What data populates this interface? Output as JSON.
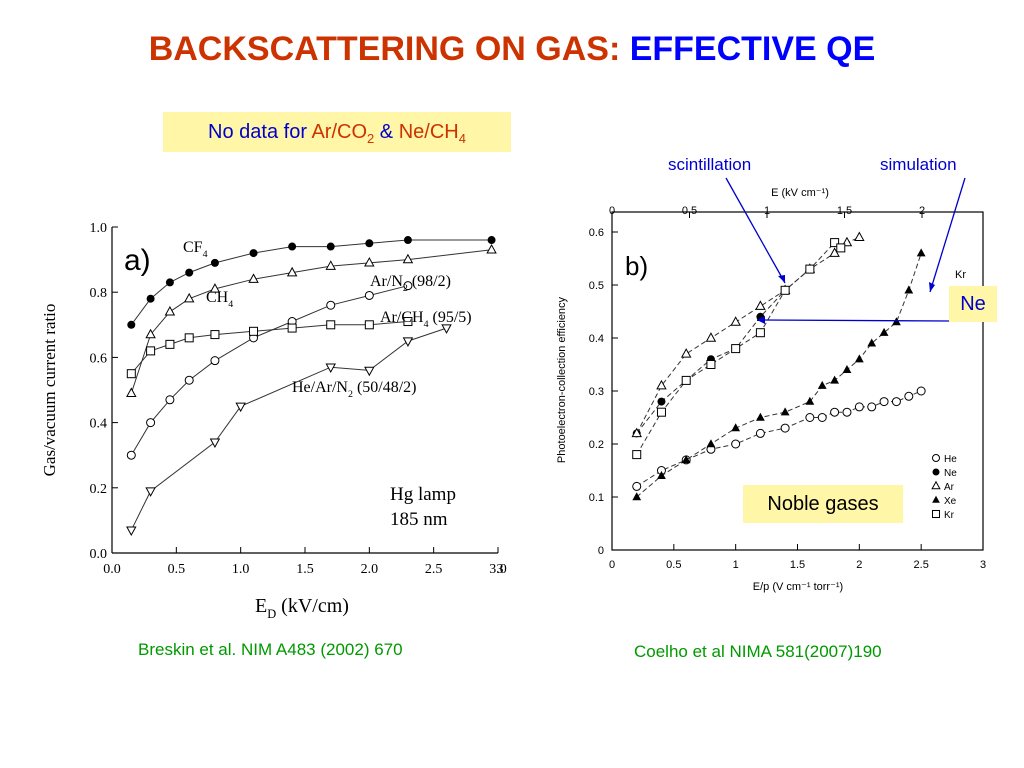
{
  "slide": {
    "title_part1": "BACKSCATTERING ON GAS: ",
    "title_part2": "EFFECTIVE QE",
    "nodata": {
      "prefix": "No data for ",
      "gas1": "Ar/CO",
      "gas1_sub": "2",
      "amp": " & ",
      "gas2": "Ne/CH",
      "gas2_sub": "4"
    },
    "citation_left": "Breskin et al. NIM A483 (2002) 670",
    "citation_right": "Coelho et al NIMA 581(2007)190",
    "label_scint": "scintillation",
    "label_sim": "simulation",
    "label_ne": "Ne",
    "label_noble": "Noble gases"
  },
  "chart_data": [
    {
      "type": "scatter",
      "panel_label": "a)",
      "xlabel": "E_D (kV/cm)",
      "xlabel_main": "E",
      "xlabel_sub": "D",
      "xlabel_unit": " (kV/cm)",
      "ylabel": "Gas/vacuum current ratio",
      "xlim": [
        0,
        3
      ],
      "ylim": [
        0,
        1
      ],
      "xticks": [
        "0.0",
        "0.5",
        "1.0",
        "1.5",
        "2.0",
        "2.5",
        "3.0",
        "3"
      ],
      "yticks": [
        "0.0",
        "0.2",
        "0.4",
        "0.6",
        "0.8",
        "1.0"
      ],
      "annotation": [
        "Hg lamp",
        "185 nm"
      ],
      "series": [
        {
          "name": "CF4",
          "label_main": "CF",
          "label_sub": "4",
          "marker": "filled-circle",
          "x": [
            0.15,
            0.3,
            0.45,
            0.6,
            0.8,
            1.1,
            1.4,
            1.7,
            2.0,
            2.3,
            2.95
          ],
          "y": [
            0.7,
            0.78,
            0.83,
            0.86,
            0.89,
            0.92,
            0.94,
            0.94,
            0.95,
            0.96,
            0.96
          ]
        },
        {
          "name": "CH4",
          "label_main": "CH",
          "label_sub": "4",
          "marker": "open-triangle",
          "x": [
            0.15,
            0.3,
            0.45,
            0.6,
            0.8,
            1.1,
            1.4,
            1.7,
            2.0,
            2.3,
            2.95
          ],
          "y": [
            0.49,
            0.67,
            0.74,
            0.78,
            0.81,
            0.84,
            0.86,
            0.88,
            0.89,
            0.9,
            0.93
          ]
        },
        {
          "name": "Ar/N2 (98/2)",
          "label_main": "Ar/N",
          "label_sub": "2",
          "label_rest": " (98/2)",
          "marker": "open-circle",
          "x": [
            0.15,
            0.3,
            0.45,
            0.6,
            0.8,
            1.1,
            1.4,
            1.7,
            2.0,
            2.3
          ],
          "y": [
            0.3,
            0.4,
            0.47,
            0.53,
            0.59,
            0.66,
            0.71,
            0.76,
            0.79,
            0.82
          ]
        },
        {
          "name": "Ar/CH4 (95/5)",
          "label_main": "Ar/CH",
          "label_sub": "4",
          "label_rest": " (95/5)",
          "marker": "open-square",
          "x": [
            0.15,
            0.3,
            0.45,
            0.6,
            0.8,
            1.1,
            1.4,
            1.7,
            2.0,
            2.3
          ],
          "y": [
            0.55,
            0.62,
            0.64,
            0.66,
            0.67,
            0.68,
            0.69,
            0.7,
            0.7,
            0.71
          ]
        },
        {
          "name": "He/Ar/N2 (50/48/2)",
          "label_main": "He/Ar/N",
          "label_sub": "2",
          "label_rest": " (50/48/2)",
          "marker": "open-inverted-triangle",
          "x": [
            0.15,
            0.3,
            0.8,
            1.0,
            1.7,
            2.0,
            2.3,
            2.6
          ],
          "y": [
            0.07,
            0.19,
            0.34,
            0.45,
            0.57,
            0.56,
            0.65,
            0.69
          ]
        }
      ]
    },
    {
      "type": "scatter",
      "panel_label": "b)",
      "xlabel": "E/p (V cm⁻¹ torr⁻¹)",
      "ylabel": "Photoelectron-collection efficiency",
      "x2label": "E (kV cm⁻¹)",
      "xlim": [
        0,
        3
      ],
      "ylim": [
        0,
        0.6
      ],
      "xticks": [
        "0",
        "0.5",
        "1",
        "1.5",
        "2",
        "2.5",
        "3"
      ],
      "yticks": [
        "0",
        "0.1",
        "0.2",
        "0.3",
        "0.4",
        "0.5",
        "0.6"
      ],
      "x2ticks": [
        "0",
        "0.5",
        "1",
        "1.5",
        "2"
      ],
      "legend_position": "bottom-right",
      "curve_label": "Kr",
      "series": [
        {
          "name": "He",
          "marker": "open-circle",
          "x": [
            0.2,
            0.4,
            0.6,
            0.8,
            1.0,
            1.2,
            1.4,
            1.6,
            1.7,
            1.8,
            1.9,
            2.0,
            2.1,
            2.2,
            2.3,
            2.4,
            2.5
          ],
          "y": [
            0.12,
            0.15,
            0.17,
            0.19,
            0.2,
            0.22,
            0.23,
            0.25,
            0.25,
            0.26,
            0.26,
            0.27,
            0.27,
            0.28,
            0.28,
            0.29,
            0.3
          ]
        },
        {
          "name": "Ne",
          "marker": "filled-circle",
          "x": [
            0.2,
            0.4,
            0.6,
            0.8,
            1.0,
            1.2,
            1.4
          ],
          "y": [
            0.22,
            0.28,
            0.32,
            0.36,
            0.38,
            0.44,
            0.49
          ]
        },
        {
          "name": "Ar",
          "marker": "open-triangle",
          "x": [
            0.2,
            0.4,
            0.6,
            0.8,
            1.0,
            1.2,
            1.4,
            1.6,
            1.8,
            1.9,
            2.0
          ],
          "y": [
            0.22,
            0.31,
            0.37,
            0.4,
            0.43,
            0.46,
            0.49,
            0.53,
            0.56,
            0.58,
            0.59
          ]
        },
        {
          "name": "Xe",
          "marker": "filled-triangle",
          "x": [
            0.2,
            0.4,
            0.6,
            0.8,
            1.0,
            1.2,
            1.4,
            1.6,
            1.7,
            1.8,
            1.9,
            2.0,
            2.1,
            2.2,
            2.3,
            2.4,
            2.5
          ],
          "y": [
            0.1,
            0.14,
            0.17,
            0.2,
            0.23,
            0.25,
            0.26,
            0.28,
            0.31,
            0.32,
            0.34,
            0.36,
            0.39,
            0.41,
            0.43,
            0.49,
            0.56
          ]
        },
        {
          "name": "Kr",
          "marker": "open-square",
          "x": [
            0.2,
            0.4,
            0.6,
            0.8,
            1.0,
            1.2,
            1.4,
            1.6,
            1.8,
            1.85
          ],
          "y": [
            0.18,
            0.26,
            0.32,
            0.35,
            0.38,
            0.41,
            0.49,
            0.53,
            0.58,
            0.57
          ]
        }
      ]
    }
  ]
}
